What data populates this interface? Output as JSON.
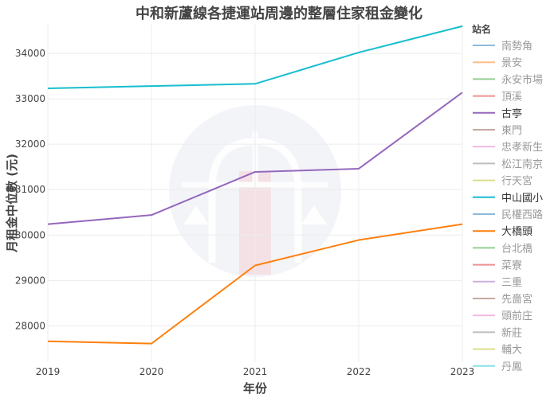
{
  "chart_data": {
    "type": "line",
    "title": "中和新蘆線各捷運站周邊的整層住家租金變化",
    "xlabel": "年份",
    "ylabel": "月租金中位數 (元)",
    "x": [
      "2019",
      "2020",
      "2021",
      "2022",
      "2023"
    ],
    "xlim": [
      2019,
      2023
    ],
    "ylim": [
      27200,
      34650
    ],
    "yticks": [
      28000,
      29000,
      30000,
      31000,
      32000,
      33000,
      34000
    ],
    "grid": true,
    "legend": {
      "title": "站名",
      "placement": "right",
      "entries": [
        {
          "name": "南勢角",
          "color": "#1f77b4",
          "active": false
        },
        {
          "name": "景安",
          "color": "#ff7f0e",
          "active": false
        },
        {
          "name": "永安市場",
          "color": "#2ca02c",
          "active": false
        },
        {
          "name": "頂溪",
          "color": "#d62728",
          "active": false
        },
        {
          "name": "古亭",
          "color": "#9467bd",
          "active": true
        },
        {
          "name": "東門",
          "color": "#8c564b",
          "active": false
        },
        {
          "name": "忠孝新生",
          "color": "#e377c2",
          "active": false
        },
        {
          "name": "松江南京",
          "color": "#7f7f7f",
          "active": false
        },
        {
          "name": "行天宮",
          "color": "#bcbd22",
          "active": false
        },
        {
          "name": "中山國小",
          "color": "#17becf",
          "active": true
        },
        {
          "name": "民權西路",
          "color": "#1f77b4",
          "active": false
        },
        {
          "name": "大橋頭",
          "color": "#ff7f0e",
          "active": true
        },
        {
          "name": "台北橋",
          "color": "#2ca02c",
          "active": false
        },
        {
          "name": "菜寮",
          "color": "#d62728",
          "active": false
        },
        {
          "name": "三重",
          "color": "#9467bd",
          "active": false
        },
        {
          "name": "先嗇宮",
          "color": "#8c564b",
          "active": false
        },
        {
          "name": "頭前庄",
          "color": "#e377c2",
          "active": false
        },
        {
          "name": "新莊",
          "color": "#7f7f7f",
          "active": false
        },
        {
          "name": "輔大",
          "color": "#bcbd22",
          "active": false
        },
        {
          "name": "丹鳳",
          "color": "#17becf",
          "active": false
        }
      ]
    },
    "series": [
      {
        "name": "中山國小",
        "color": "#17becf",
        "values": [
          33230,
          33280,
          33330,
          34020,
          34600
        ]
      },
      {
        "name": "古亭",
        "color": "#9467bd",
        "values": [
          30240,
          30440,
          31390,
          31460,
          33140
        ]
      },
      {
        "name": "大橋頭",
        "color": "#ff7f0e",
        "values": [
          27660,
          27610,
          29330,
          29890,
          30240
        ]
      }
    ]
  }
}
